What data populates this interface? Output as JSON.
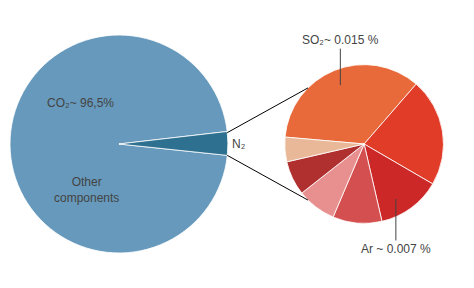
{
  "chart_data": [
    {
      "type": "pie",
      "values": [
        96.5,
        3.5
      ],
      "colors": [
        "#6699bb",
        "#2e7090"
      ],
      "annotations": [
        "CO₂~ 96,5%",
        "Other\ncomponents",
        "N₂"
      ]
    },
    {
      "type": "pie",
      "values": [
        35,
        22,
        13,
        10,
        8,
        7,
        5
      ],
      "colors": [
        "#e8693a",
        "#e03c28",
        "#cc2828",
        "#d45050",
        "#e89090",
        "#b03030",
        "#e8b898"
      ],
      "annotations": [
        "SO₂~ 0.015 %",
        "Ar ~ 0.007 %"
      ]
    }
  ]
}
